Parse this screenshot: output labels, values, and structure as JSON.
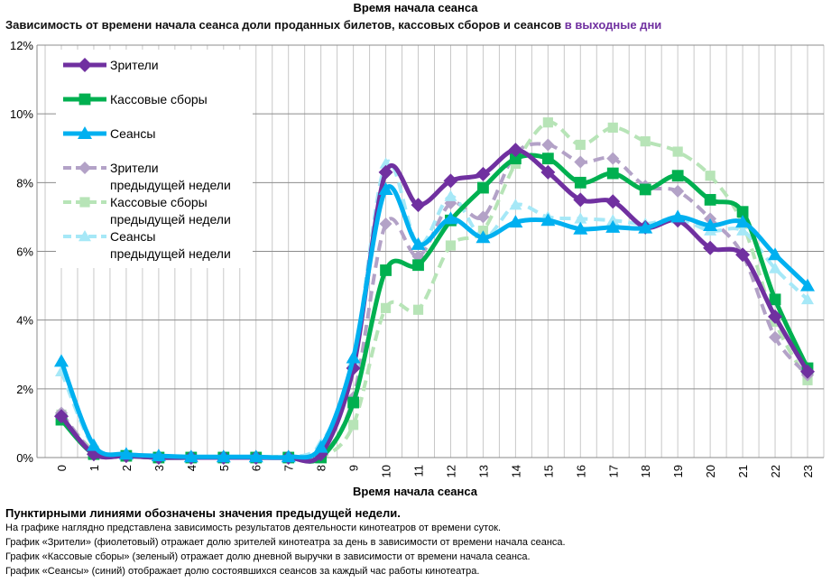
{
  "chart_data": {
    "type": "line",
    "title": "Время начала сеанса",
    "subtitle": "Зависимость от времени начала сеанса доли проданных билетов, кассовых сборов и сеансов",
    "subtitle_highlight": "в выходные дни",
    "xlabel": "Время начала сеанса",
    "ylabel": "",
    "x": [
      0,
      1,
      2,
      3,
      4,
      5,
      6,
      7,
      8,
      9,
      10,
      11,
      12,
      13,
      14,
      15,
      16,
      17,
      18,
      19,
      20,
      21,
      22,
      23
    ],
    "ylim": [
      0,
      12
    ],
    "yticks": [
      "0%",
      "2%",
      "4%",
      "6%",
      "8%",
      "10%",
      "12%"
    ],
    "ytick_values": [
      0,
      2,
      4,
      6,
      8,
      10,
      12
    ],
    "grid": true,
    "legend_placement": "top-left",
    "series": [
      {
        "name": "Зрители",
        "color": "#7030a0",
        "marker": "diamond",
        "dashed": false,
        "values": [
          1.2,
          0.1,
          0.05,
          0,
          0,
          0,
          0,
          0,
          0.1,
          2.6,
          8.3,
          7.35,
          8.05,
          8.25,
          8.95,
          8.3,
          7.5,
          7.45,
          6.7,
          6.9,
          6.1,
          5.9,
          4.1,
          2.5
        ]
      },
      {
        "name": "Кассовые сборы",
        "color": "#00b050",
        "marker": "square",
        "dashed": false,
        "values": [
          1.1,
          0.1,
          0.05,
          0,
          0,
          0,
          0,
          0,
          0,
          1.6,
          5.45,
          5.6,
          6.9,
          7.85,
          8.7,
          8.7,
          8.0,
          8.27,
          7.8,
          8.2,
          7.5,
          7.15,
          4.6,
          2.6
        ]
      },
      {
        "name": "Сеансы",
        "color": "#00b0f0",
        "marker": "triangle",
        "dashed": false,
        "values": [
          2.8,
          0.35,
          0.1,
          0.05,
          0.02,
          0.02,
          0.02,
          0.02,
          0.3,
          2.9,
          7.8,
          6.2,
          6.95,
          6.4,
          6.85,
          6.9,
          6.65,
          6.7,
          6.68,
          7.0,
          6.75,
          6.85,
          5.9,
          5.0
        ]
      },
      {
        "name": "Зрители предыдущей недели",
        "color": "#b3a2c7",
        "marker": "diamond",
        "dashed": true,
        "values": [
          1.3,
          0.15,
          0.05,
          0,
          0,
          0,
          0,
          0,
          0.05,
          1.75,
          6.8,
          5.85,
          7.4,
          7.0,
          8.85,
          9.1,
          8.6,
          8.7,
          7.9,
          7.75,
          6.95,
          5.9,
          3.5,
          2.4
        ]
      },
      {
        "name": "Кассовые сборы предыдущей недели",
        "color": "#b7e4b7",
        "marker": "square",
        "dashed": true,
        "values": [
          1.25,
          0.2,
          0.05,
          0.02,
          0.02,
          0.02,
          0.02,
          0.02,
          0,
          0.95,
          4.35,
          4.3,
          6.17,
          6.6,
          8.55,
          9.75,
          9.1,
          9.6,
          9.2,
          8.9,
          8.2,
          6.8,
          3.95,
          2.25
        ]
      },
      {
        "name": "Сеансы предыдущей недели",
        "color": "#a6e8f7",
        "marker": "triangle",
        "dashed": true,
        "values": [
          2.5,
          0.3,
          0.1,
          0.05,
          0.02,
          0.02,
          0.02,
          0.02,
          0.4,
          2.8,
          8.55,
          6.2,
          7.6,
          6.4,
          7.35,
          7.0,
          6.95,
          6.9,
          6.8,
          6.95,
          6.6,
          6.6,
          5.5,
          4.6
        ]
      }
    ],
    "legend": [
      {
        "line1": "Зрители",
        "line2": ""
      },
      {
        "line1": "Кассовые сборы",
        "line2": ""
      },
      {
        "line1": "Сеансы",
        "line2": ""
      },
      {
        "line1": "Зрители",
        "line2": "предыдущей недели"
      },
      {
        "line1": "Кассовые сборы",
        "line2": "предыдущей недели"
      },
      {
        "line1": "Сеансы",
        "line2": "предыдущей недели"
      }
    ]
  },
  "notes": {
    "heading": "Пунктирными линиями обозначены значения предыдущей недели.",
    "lines": [
      "На графике наглядно представлена зависимость результатов деятельности кинотеатров от времени суток.",
      "График «Зрители» (фиолетовый) отражает долю зрителей кинотеатра за день в зависимости от времени начала сеанса.",
      "График «Кассовые сборы» (зеленый) отражает долю дневной выручки в зависимости от времени начала сеанса.",
      "График «Сеансы» (синий) отображает долю состоявшихся сеансов за каждый час работы кинотеатра."
    ]
  }
}
